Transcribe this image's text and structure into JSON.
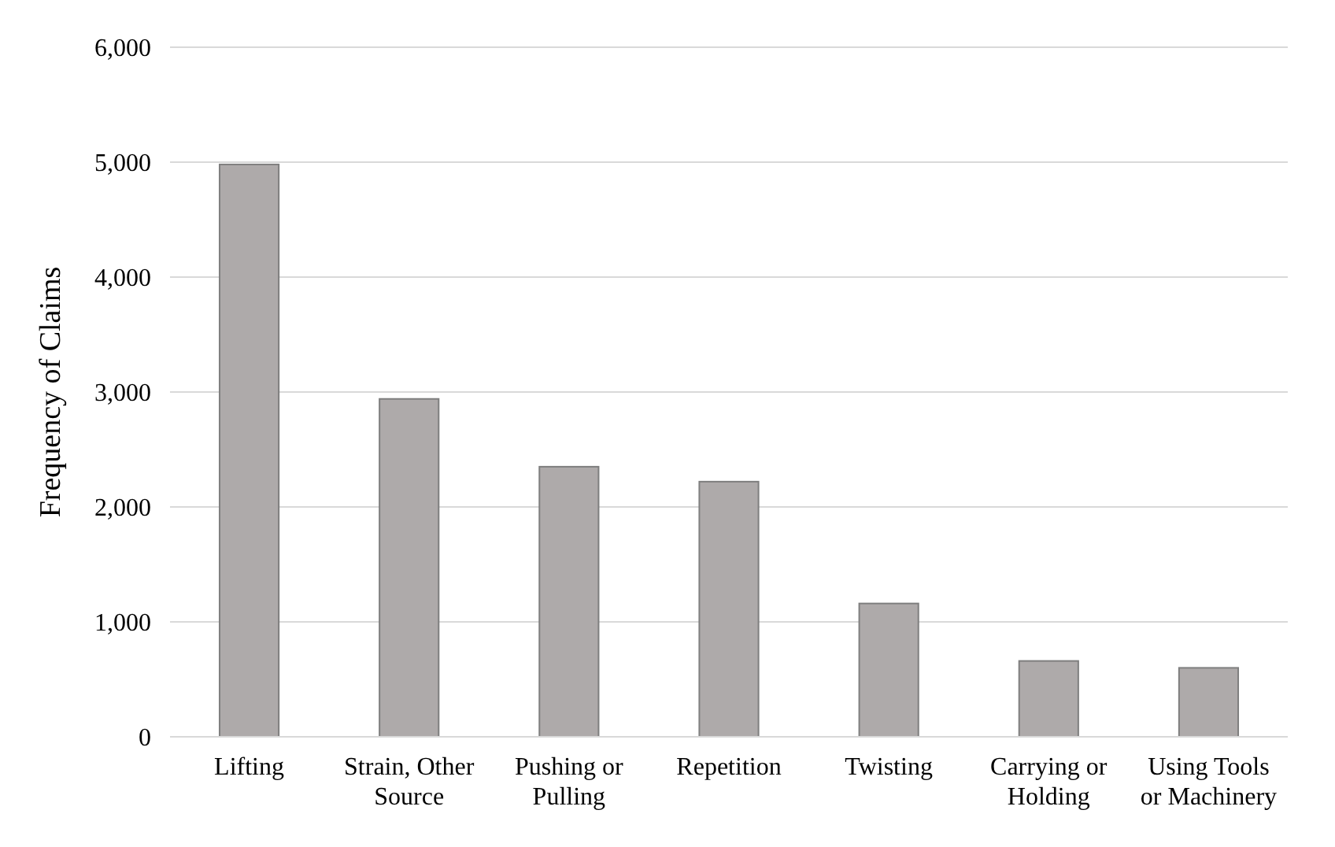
{
  "chart_data": {
    "type": "bar",
    "ylabel": "Frequency of Claims",
    "categories": [
      "Lifting",
      "Strain, Other Source",
      "Pushing or Pulling",
      "Repetition",
      "Twisting",
      "Carrying or Holding",
      "Using Tools or Machinery"
    ],
    "values": [
      4980,
      2940,
      2350,
      2220,
      1160,
      660,
      600
    ],
    "color": "#aeaaaa",
    "ylim": [
      0,
      6000
    ],
    "yticks": [
      {
        "value": 0,
        "label": "0"
      },
      {
        "value": 1000,
        "label": "1,000"
      },
      {
        "value": 2000,
        "label": "2,000"
      },
      {
        "value": 3000,
        "label": "3,000"
      },
      {
        "value": 4000,
        "label": "4,000"
      },
      {
        "value": 5000,
        "label": "5,000"
      },
      {
        "value": 6000,
        "label": "6,000"
      }
    ],
    "grid": "y"
  }
}
